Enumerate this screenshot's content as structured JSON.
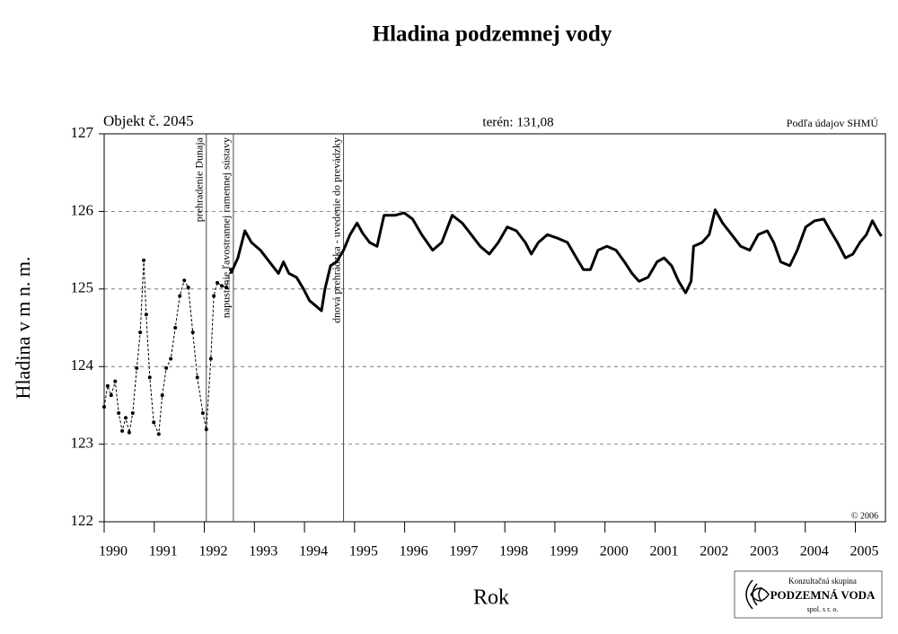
{
  "chart_data": {
    "type": "line",
    "title": "Hladina podzemnej vody",
    "subtitle_left": "Objekt č. 2045",
    "subtitle_center": "terén: 131,08",
    "source": "Podľa údajov SHMÚ",
    "copyright": "© 2006",
    "xlabel": "Rok",
    "ylabel": "Hladina v m n. m.",
    "xlim": [
      1990,
      2005.6
    ],
    "xticks": [
      1990,
      1991,
      1992,
      1993,
      1994,
      1995,
      1996,
      1997,
      1998,
      1999,
      2000,
      2001,
      2002,
      2003,
      2004,
      2005
    ],
    "ylim": [
      122,
      127
    ],
    "yticks": [
      122,
      123,
      124,
      125,
      126,
      127
    ],
    "grid": true,
    "series": [
      {
        "color": "#000000",
        "line_style": "dashed",
        "markers": true,
        "x": [
          1990.0,
          1990.07,
          1990.14,
          1990.22,
          1990.29,
          1990.36,
          1990.43,
          1990.5,
          1990.57,
          1990.65,
          1990.72,
          1990.79,
          1990.84,
          1990.91,
          1990.99,
          1991.09,
          1991.16,
          1991.24,
          1991.33,
          1991.42,
          1991.51,
          1991.6,
          1991.68,
          1991.77,
          1991.86,
          1991.97,
          1992.04,
          1992.13,
          1992.19,
          1992.26,
          1992.35,
          1992.44,
          1992.53
        ],
        "values": [
          123.48,
          123.75,
          123.63,
          123.81,
          123.4,
          123.17,
          123.34,
          123.15,
          123.4,
          123.98,
          124.44,
          125.37,
          124.67,
          123.86,
          123.28,
          123.13,
          123.63,
          123.98,
          124.1,
          124.5,
          124.91,
          125.11,
          125.02,
          124.44,
          123.86,
          123.4,
          123.19,
          124.1,
          124.91,
          125.08,
          125.04,
          125.02,
          125.25
        ]
      },
      {
        "color": "#000000",
        "line_style": "solid",
        "markers": false,
        "x": [
          1992.53,
          1992.67,
          1992.81,
          1992.94,
          1993.12,
          1993.3,
          1993.48,
          1993.58,
          1993.69,
          1993.84,
          1993.98,
          1994.1,
          1994.23,
          1994.34,
          1994.41,
          1994.52,
          1994.64,
          1994.78,
          1994.91,
          1995.05,
          1995.16,
          1995.3,
          1995.45,
          1995.59,
          1995.81,
          1995.99,
          1996.16,
          1996.34,
          1996.56,
          1996.74,
          1996.95,
          1997.15,
          1997.33,
          1997.51,
          1997.69,
          1997.87,
          1998.05,
          1998.23,
          1998.41,
          1998.53,
          1998.67,
          1998.85,
          1999.07,
          1999.25,
          1999.43,
          1999.57,
          1999.71,
          1999.86,
          2000.04,
          2000.22,
          2000.39,
          2000.54,
          2000.68,
          2000.86,
          2001.04,
          2001.18,
          2001.33,
          2001.47,
          2001.61,
          2001.72,
          2001.77,
          2001.94,
          2002.08,
          2002.2,
          2002.35,
          2002.53,
          2002.71,
          2002.89,
          2003.06,
          2003.24,
          2003.37,
          2003.51,
          2003.69,
          2003.84,
          2004.01,
          2004.19,
          2004.37,
          2004.5,
          2004.64,
          2004.8,
          2004.95,
          2005.09,
          2005.22,
          2005.34,
          2005.45,
          2005.52
        ],
        "values": [
          125.2,
          125.4,
          125.75,
          125.6,
          125.5,
          125.35,
          125.2,
          125.35,
          125.2,
          125.15,
          125.0,
          124.85,
          124.78,
          124.72,
          125.0,
          125.3,
          125.35,
          125.5,
          125.7,
          125.85,
          125.72,
          125.6,
          125.55,
          125.95,
          125.95,
          125.98,
          125.9,
          125.7,
          125.5,
          125.6,
          125.95,
          125.85,
          125.7,
          125.55,
          125.45,
          125.6,
          125.8,
          125.75,
          125.6,
          125.45,
          125.6,
          125.7,
          125.65,
          125.6,
          125.4,
          125.25,
          125.25,
          125.5,
          125.55,
          125.5,
          125.35,
          125.2,
          125.1,
          125.15,
          125.35,
          125.4,
          125.3,
          125.1,
          124.95,
          125.1,
          125.55,
          125.6,
          125.7,
          126.02,
          125.85,
          125.7,
          125.55,
          125.5,
          125.7,
          125.75,
          125.6,
          125.35,
          125.3,
          125.5,
          125.8,
          125.88,
          125.9,
          125.75,
          125.6,
          125.4,
          125.45,
          125.6,
          125.7,
          125.88,
          125.75,
          125.68
        ]
      }
    ],
    "annotations": [
      {
        "x": 1992.04,
        "label": "prehradenie Dunaja"
      },
      {
        "x": 1992.58,
        "label": "napustenie ľavostrannej ramennej sústavy"
      },
      {
        "x": 1994.78,
        "label": "dnová prehrádzka - uvedenie do prevádzky"
      }
    ]
  },
  "logo": {
    "line1": "Konzultačná skupina",
    "line2": "PODZEMNÁ VODA",
    "line3": "spol. s r. o."
  }
}
